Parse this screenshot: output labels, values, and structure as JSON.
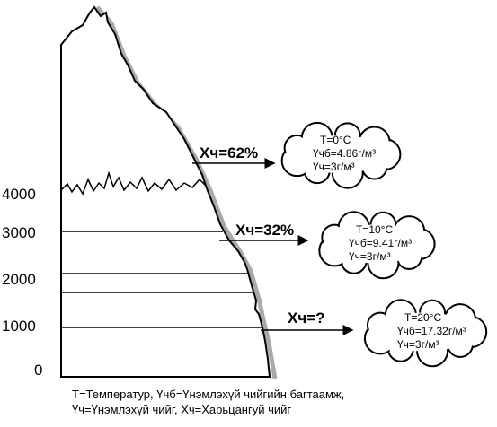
{
  "altitudes": [
    "4000",
    "3000",
    "2000",
    "1000",
    "0"
  ],
  "arrows": [
    {
      "label": "Хч=62%"
    },
    {
      "label": "Хч=32%"
    },
    {
      "label": "Хч=?"
    }
  ],
  "clouds": [
    {
      "lines": [
        "T=0°C",
        "Үчб=4.86г/м³",
        "Үч=3г/м³"
      ]
    },
    {
      "lines": [
        "T=10°C",
        "Үчб=9.41г/м³",
        "Үч=3г/м³"
      ]
    },
    {
      "lines": [
        "T=20°C",
        "Үчб=17.32г/м³",
        "Үч=3г/м³"
      ]
    }
  ],
  "caption": [
    "T=Температур, Үчб=Үнэмлэхүй чийгийн багтаамж,",
    "Үч=Үнэмлэхүй чийг, Хч=Харьцангуй чийг"
  ]
}
